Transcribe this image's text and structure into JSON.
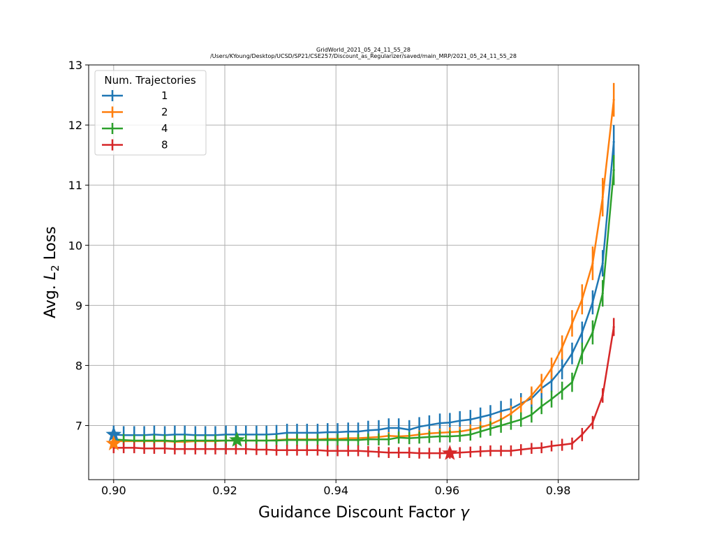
{
  "chart_data": {
    "type": "line",
    "title": "GridWorld_2021_05_24_11_55_28",
    "subtitle": "/Users/KYoung/Desktop/UCSD/SP21/CSE257/Discount_as_Regularizer/saved/main_MRP/2021_05_24_11_55_28",
    "xlabel": "Guidance Discount Factor",
    "xlabel_symbol": "γ",
    "ylabel": "Avg.",
    "ylabel_math": "L",
    "ylabel_sub": "2",
    "ylabel_suffix": "Loss",
    "xlim": [
      0.8955,
      0.9945
    ],
    "ylim": [
      6.1,
      13.0
    ],
    "xticks": [
      0.9,
      0.92,
      0.94,
      0.96,
      0.98
    ],
    "xtick_labels": [
      "0.90",
      "0.92",
      "0.94",
      "0.96",
      "0.98"
    ],
    "yticks": [
      7,
      8,
      9,
      10,
      11,
      12,
      13
    ],
    "ytick_labels": [
      "7",
      "8",
      "9",
      "10",
      "11",
      "12",
      "13"
    ],
    "grid": true,
    "legend": {
      "title": "Num. Trajectories",
      "placement": "upper-left"
    },
    "x": [
      0.9,
      0.9018,
      0.9037,
      0.9055,
      0.9073,
      0.9092,
      0.911,
      0.9128,
      0.9147,
      0.9165,
      0.9183,
      0.9202,
      0.922,
      0.9238,
      0.9257,
      0.9275,
      0.9293,
      0.9312,
      0.933,
      0.9348,
      0.9367,
      0.9385,
      0.9403,
      0.9422,
      0.944,
      0.9458,
      0.9477,
      0.9495,
      0.9513,
      0.9532,
      0.955,
      0.9568,
      0.9587,
      0.9605,
      0.9623,
      0.9642,
      0.966,
      0.9678,
      0.9697,
      0.9715,
      0.9733,
      0.9752,
      0.977,
      0.9788,
      0.9807,
      0.9825,
      0.9843,
      0.9862,
      0.988,
      0.99
    ],
    "series": [
      {
        "name": "1",
        "color": "#1f77b4",
        "values": [
          6.85,
          6.84,
          6.84,
          6.84,
          6.85,
          6.84,
          6.85,
          6.85,
          6.84,
          6.84,
          6.84,
          6.85,
          6.85,
          6.85,
          6.85,
          6.85,
          6.86,
          6.88,
          6.88,
          6.88,
          6.88,
          6.89,
          6.89,
          6.9,
          6.9,
          6.92,
          6.93,
          6.96,
          6.96,
          6.93,
          6.98,
          7.01,
          7.04,
          7.05,
          7.08,
          7.1,
          7.14,
          7.18,
          7.24,
          7.28,
          7.37,
          7.45,
          7.62,
          7.74,
          7.95,
          8.2,
          8.55,
          9.05,
          9.7,
          11.72
        ],
        "errors": [
          0.15,
          0.15,
          0.15,
          0.15,
          0.15,
          0.15,
          0.15,
          0.15,
          0.15,
          0.15,
          0.15,
          0.15,
          0.15,
          0.15,
          0.15,
          0.15,
          0.15,
          0.15,
          0.15,
          0.15,
          0.15,
          0.15,
          0.15,
          0.15,
          0.15,
          0.16,
          0.16,
          0.16,
          0.16,
          0.16,
          0.16,
          0.16,
          0.16,
          0.16,
          0.16,
          0.16,
          0.16,
          0.16,
          0.17,
          0.17,
          0.17,
          0.17,
          0.18,
          0.18,
          0.18,
          0.18,
          0.18,
          0.2,
          0.22,
          0.28
        ],
        "best": {
          "x": 0.9,
          "y": 6.85
        }
      },
      {
        "name": "2",
        "color": "#ff7f0e",
        "values": [
          6.74,
          6.74,
          6.74,
          6.74,
          6.74,
          6.74,
          6.73,
          6.73,
          6.74,
          6.74,
          6.74,
          6.75,
          6.75,
          6.75,
          6.75,
          6.75,
          6.76,
          6.77,
          6.77,
          6.77,
          6.77,
          6.78,
          6.78,
          6.79,
          6.79,
          6.8,
          6.81,
          6.83,
          6.82,
          6.83,
          6.85,
          6.87,
          6.88,
          6.89,
          6.9,
          6.93,
          6.97,
          7.02,
          7.1,
          7.2,
          7.33,
          7.5,
          7.7,
          7.95,
          8.3,
          8.7,
          9.1,
          9.7,
          10.8,
          12.42
        ],
        "errors": [
          0.06,
          0.06,
          0.06,
          0.06,
          0.06,
          0.06,
          0.06,
          0.06,
          0.06,
          0.06,
          0.06,
          0.06,
          0.06,
          0.06,
          0.06,
          0.06,
          0.06,
          0.06,
          0.06,
          0.06,
          0.06,
          0.06,
          0.06,
          0.06,
          0.06,
          0.06,
          0.06,
          0.06,
          0.06,
          0.06,
          0.07,
          0.07,
          0.07,
          0.08,
          0.08,
          0.09,
          0.1,
          0.11,
          0.12,
          0.13,
          0.14,
          0.15,
          0.16,
          0.18,
          0.2,
          0.22,
          0.25,
          0.28,
          0.32,
          0.28
        ],
        "best": {
          "x": 0.9,
          "y": 6.7
        }
      },
      {
        "name": "4",
        "color": "#2ca02c",
        "values": [
          6.77,
          6.76,
          6.75,
          6.75,
          6.75,
          6.75,
          6.74,
          6.75,
          6.75,
          6.75,
          6.75,
          6.75,
          6.75,
          6.75,
          6.75,
          6.75,
          6.75,
          6.76,
          6.76,
          6.76,
          6.76,
          6.76,
          6.76,
          6.76,
          6.76,
          6.77,
          6.77,
          6.77,
          6.8,
          6.79,
          6.8,
          6.81,
          6.82,
          6.82,
          6.83,
          6.85,
          6.9,
          6.95,
          7.0,
          7.05,
          7.1,
          7.18,
          7.32,
          7.44,
          7.58,
          7.72,
          8.2,
          8.55,
          9.2,
          11.25
        ],
        "errors": [
          0.1,
          0.1,
          0.1,
          0.1,
          0.1,
          0.1,
          0.1,
          0.1,
          0.1,
          0.1,
          0.1,
          0.1,
          0.1,
          0.1,
          0.1,
          0.1,
          0.1,
          0.1,
          0.1,
          0.1,
          0.1,
          0.1,
          0.1,
          0.1,
          0.1,
          0.1,
          0.1,
          0.1,
          0.1,
          0.1,
          0.1,
          0.1,
          0.1,
          0.1,
          0.1,
          0.1,
          0.1,
          0.12,
          0.12,
          0.12,
          0.12,
          0.13,
          0.13,
          0.14,
          0.15,
          0.16,
          0.18,
          0.2,
          0.22,
          0.25
        ],
        "best": {
          "x": 0.9222,
          "y": 6.76
        }
      },
      {
        "name": "8",
        "color": "#d62728",
        "values": [
          6.63,
          6.63,
          6.63,
          6.62,
          6.62,
          6.62,
          6.61,
          6.61,
          6.61,
          6.61,
          6.61,
          6.61,
          6.61,
          6.61,
          6.6,
          6.6,
          6.59,
          6.59,
          6.59,
          6.59,
          6.59,
          6.58,
          6.58,
          6.58,
          6.58,
          6.57,
          6.56,
          6.55,
          6.55,
          6.55,
          6.54,
          6.54,
          6.54,
          6.54,
          6.55,
          6.56,
          6.57,
          6.58,
          6.58,
          6.58,
          6.6,
          6.62,
          6.63,
          6.66,
          6.68,
          6.7,
          6.85,
          7.05,
          7.5,
          8.64
        ],
        "errors": [
          0.09,
          0.09,
          0.09,
          0.09,
          0.09,
          0.09,
          0.09,
          0.09,
          0.09,
          0.09,
          0.09,
          0.09,
          0.09,
          0.09,
          0.09,
          0.09,
          0.09,
          0.09,
          0.09,
          0.09,
          0.09,
          0.09,
          0.09,
          0.09,
          0.09,
          0.09,
          0.09,
          0.09,
          0.09,
          0.09,
          0.09,
          0.09,
          0.09,
          0.09,
          0.09,
          0.09,
          0.09,
          0.09,
          0.09,
          0.09,
          0.09,
          0.09,
          0.09,
          0.09,
          0.1,
          0.1,
          0.11,
          0.11,
          0.12,
          0.15
        ],
        "best": {
          "x": 0.9605,
          "y": 6.54
        }
      }
    ]
  }
}
